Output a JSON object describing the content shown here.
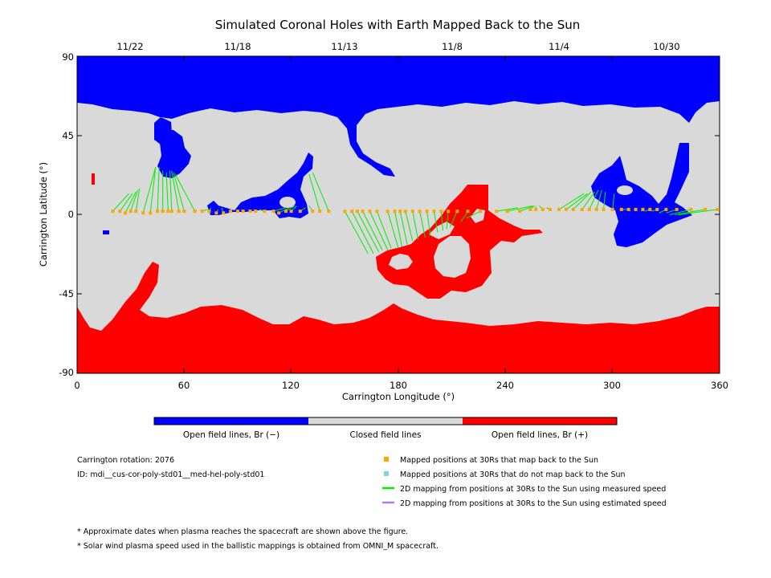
{
  "title": "Simulated Coronal Holes with Earth Mapped Back to the Sun",
  "xlabel": "Carrington Longitude (°)",
  "ylabel": "Carrington Latitude (°)",
  "x_ticks": [
    "0",
    "60",
    "120",
    "180",
    "240",
    "300",
    "360"
  ],
  "y_ticks": [
    "90",
    "45",
    "0",
    "-45",
    "-90"
  ],
  "date_ticks": [
    "11/22",
    "11/18",
    "11/13",
    "11/8",
    "11/4",
    "10/30"
  ],
  "colorbar": {
    "neg_label": "Open field lines, Br (−)",
    "closed_label": "Closed field lines",
    "pos_label": "Open field lines, Br (+)"
  },
  "colors": {
    "open_negative": "#0000ff",
    "closed": "#d9d9d9",
    "open_positive": "#ff0000",
    "mapped": "#ffa500",
    "unmapped": "#87ceeb",
    "measured_speed": "#00ee00",
    "estimated_speed": "#b07ce6"
  },
  "info": {
    "rotation": "Carrington rotation: 2076",
    "id": "ID: mdi__cus-cor-poly-std01__med-hel-poly-std01"
  },
  "legend": {
    "mapped": "Mapped positions at 30Rs that map back to the Sun",
    "unmapped": "Mapped positions at 30Rs that do not map back to the Sun",
    "measured": "2D mapping from positions at 30Rs to the Sun using measured speed",
    "estimated": "2D mapping from positions at 30Rs to the Sun using estimated speed"
  },
  "notes": {
    "note1": "* Approximate dates when plasma reaches the spacecraft are shown above the figure.",
    "note2": "* Solar wind plasma speed used in the ballistic mappings is obtained from OMNI_M spacecraft."
  },
  "chart_data": {
    "type": "map",
    "xlim": [
      0,
      360
    ],
    "ylim": [
      -90,
      90
    ],
    "date_tick_longitudes": [
      30,
      90,
      150,
      210,
      270,
      330
    ],
    "date_tick_labels": [
      "11/22",
      "11/18",
      "11/13",
      "11/8",
      "11/4",
      "10/30"
    ],
    "mappings": [
      {
        "x": 20,
        "y": 2,
        "fx": 29,
        "fy": 12
      },
      {
        "x": 24,
        "y": 2,
        "fx": 31,
        "fy": 12
      },
      {
        "x": 27,
        "y": 1,
        "fx": 33,
        "fy": 13
      },
      {
        "x": 30,
        "y": 2,
        "fx": 34,
        "fy": 14
      },
      {
        "x": 33,
        "y": 2,
        "fx": 35,
        "fy": 15
      },
      {
        "x": 37,
        "y": 1,
        "fx": 44,
        "fy": 27
      },
      {
        "x": 41,
        "y": 1,
        "fx": 44,
        "fy": 27
      },
      {
        "x": 45,
        "y": 2,
        "fx": 46,
        "fy": 27
      },
      {
        "x": 48,
        "y": 2,
        "fx": 48,
        "fy": 25
      },
      {
        "x": 51,
        "y": 2,
        "fx": 50,
        "fy": 24
      },
      {
        "x": 53,
        "y": 2,
        "fx": 52,
        "fy": 25
      },
      {
        "x": 57,
        "y": 2,
        "fx": 53,
        "fy": 25
      },
      {
        "x": 60,
        "y": 2,
        "fx": 54,
        "fy": 24
      },
      {
        "x": 66,
        "y": 2,
        "fx": 55,
        "fy": 23
      },
      {
        "x": 70,
        "y": 2,
        "fx": 73,
        "fy": 3
      },
      {
        "x": 74,
        "y": 2,
        "fx": 75,
        "fy": 4
      },
      {
        "x": 78,
        "y": 1,
        "fx": 79,
        "fy": 3
      },
      {
        "x": 82,
        "y": 1,
        "fx": 81,
        "fy": 4
      },
      {
        "x": 86,
        "y": 2,
        "fx": 86,
        "fy": 3
      },
      {
        "x": 90,
        "y": 2,
        "fx": 89,
        "fy": 3
      },
      {
        "x": 93,
        "y": 2,
        "fx": 92,
        "fy": 3
      },
      {
        "x": 97,
        "y": 2,
        "fx": 96,
        "fy": 3
      },
      {
        "x": 100,
        "y": 2,
        "fx": 99,
        "fy": 3
      },
      {
        "x": 105,
        "y": 2,
        "fx": 102,
        "fy": 3
      },
      {
        "x": 110,
        "y": 2,
        "fx": 117,
        "fy": 4
      },
      {
        "x": 113,
        "y": 1,
        "fx": 119,
        "fy": 4
      },
      {
        "x": 117,
        "y": 2,
        "fx": 122,
        "fy": 5
      },
      {
        "x": 120,
        "y": 2,
        "fx": 123,
        "fy": 5
      },
      {
        "x": 125,
        "y": 2,
        "fx": 128,
        "fy": 4
      },
      {
        "x": 132,
        "y": 2,
        "fx": 130,
        "fy": 5
      },
      {
        "x": 136,
        "y": 2,
        "fx": 130,
        "fy": 23
      },
      {
        "x": 141,
        "y": 2,
        "fx": 132,
        "fy": 24
      },
      {
        "x": 150,
        "y": 2,
        "fx": 163,
        "fy": -22
      },
      {
        "x": 154,
        "y": 2,
        "fx": 166,
        "fy": -22
      },
      {
        "x": 157,
        "y": 2,
        "fx": 169,
        "fy": -21
      },
      {
        "x": 160,
        "y": 2,
        "fx": 171,
        "fy": -20
      },
      {
        "x": 164,
        "y": 2,
        "fx": 174,
        "fy": -20
      },
      {
        "x": 168,
        "y": 2,
        "fx": 176,
        "fy": -19
      },
      {
        "x": 174,
        "y": 2,
        "fx": 180,
        "fy": -19
      },
      {
        "x": 178,
        "y": 2,
        "fx": 182,
        "fy": -18
      },
      {
        "x": 181,
        "y": 2,
        "fx": 185,
        "fy": -17
      },
      {
        "x": 184,
        "y": 2,
        "fx": 188,
        "fy": -15
      },
      {
        "x": 188,
        "y": 2,
        "fx": 191,
        "fy": -14
      },
      {
        "x": 192,
        "y": 2,
        "fx": 195,
        "fy": -13
      },
      {
        "x": 196,
        "y": 2,
        "fx": 198,
        "fy": -12
      },
      {
        "x": 200,
        "y": 2,
        "fx": 202,
        "fy": -10
      },
      {
        "x": 204,
        "y": 2,
        "fx": 205,
        "fy": -9
      },
      {
        "x": 208,
        "y": 2,
        "fx": 207,
        "fy": -8
      },
      {
        "x": 213,
        "y": 2,
        "fx": 209,
        "fy": -7
      },
      {
        "x": 219,
        "y": 2,
        "fx": 215,
        "fy": -4
      },
      {
        "x": 226,
        "y": 2,
        "fx": 218,
        "fy": -2
      },
      {
        "x": 235,
        "y": 2,
        "fx": 247,
        "fy": 4
      },
      {
        "x": 241,
        "y": 2,
        "fx": 255,
        "fy": 5
      },
      {
        "x": 248,
        "y": 2,
        "fx": 256,
        "fy": 5
      },
      {
        "x": 254,
        "y": 3,
        "fx": 256,
        "fy": 5
      },
      {
        "x": 257,
        "y": 3,
        "fx": 257,
        "fy": 5
      },
      {
        "x": 261,
        "y": 3,
        "fx": 259,
        "fy": 5
      },
      {
        "x": 265,
        "y": 3,
        "fx": 263,
        "fy": 4
      },
      {
        "x": 270,
        "y": 3,
        "fx": 284,
        "fy": 12
      },
      {
        "x": 274,
        "y": 3,
        "fx": 286,
        "fy": 12
      },
      {
        "x": 278,
        "y": 3,
        "fx": 288,
        "fy": 13
      },
      {
        "x": 283,
        "y": 3,
        "fx": 290,
        "fy": 13
      },
      {
        "x": 287,
        "y": 3,
        "fx": 292,
        "fy": 14
      },
      {
        "x": 291,
        "y": 3,
        "fx": 294,
        "fy": 14
      },
      {
        "x": 295,
        "y": 3,
        "fx": 296,
        "fy": 13
      },
      {
        "x": 300,
        "y": 3,
        "fx": 301,
        "fy": 12
      },
      {
        "x": 305,
        "y": 3,
        "fx": 309,
        "fy": 3
      },
      {
        "x": 309,
        "y": 3,
        "fx": 310,
        "fy": 2
      },
      {
        "x": 313,
        "y": 3,
        "fx": 313,
        "fy": 2
      },
      {
        "x": 317,
        "y": 3,
        "fx": 316,
        "fy": 2
      },
      {
        "x": 321,
        "y": 3,
        "fx": 318,
        "fy": 2
      },
      {
        "x": 325,
        "y": 3,
        "fx": 322,
        "fy": 2
      },
      {
        "x": 330,
        "y": 3,
        "fx": 326,
        "fy": 1
      },
      {
        "x": 336,
        "y": 3,
        "fx": 330,
        "fy": 1
      },
      {
        "x": 344,
        "y": 3,
        "fx": 332,
        "fy": 0
      },
      {
        "x": 352,
        "y": 3,
        "fx": 335,
        "fy": 0
      },
      {
        "x": 359,
        "y": 3,
        "fx": 337,
        "fy": 0
      }
    ]
  }
}
